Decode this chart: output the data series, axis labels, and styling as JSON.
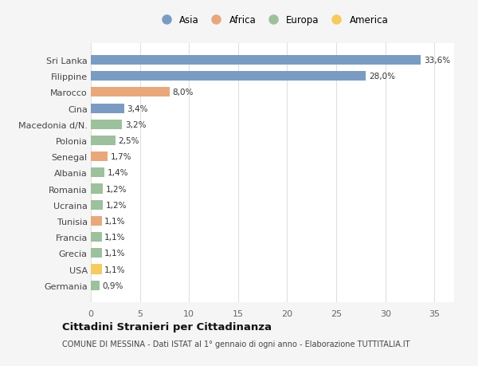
{
  "categories": [
    "Germania",
    "USA",
    "Grecia",
    "Francia",
    "Tunisia",
    "Ucraina",
    "Romania",
    "Albania",
    "Senegal",
    "Polonia",
    "Macedonia d/N.",
    "Cina",
    "Marocco",
    "Filippine",
    "Sri Lanka"
  ],
  "values": [
    0.9,
    1.1,
    1.1,
    1.1,
    1.1,
    1.2,
    1.2,
    1.4,
    1.7,
    2.5,
    3.2,
    3.4,
    8.0,
    28.0,
    33.6
  ],
  "labels": [
    "0,9%",
    "1,1%",
    "1,1%",
    "1,1%",
    "1,1%",
    "1,2%",
    "1,2%",
    "1,4%",
    "1,7%",
    "2,5%",
    "3,2%",
    "3,4%",
    "8,0%",
    "28,0%",
    "33,6%"
  ],
  "colors": [
    "#9dc09d",
    "#f5ca5e",
    "#9dc09d",
    "#9dc09d",
    "#e8a87c",
    "#9dc09d",
    "#9dc09d",
    "#9dc09d",
    "#e8a87c",
    "#9dc09d",
    "#9dc09d",
    "#7b9cc2",
    "#e8a87c",
    "#7b9cc2",
    "#7b9cc2"
  ],
  "legend_labels": [
    "Asia",
    "Africa",
    "Europa",
    "America"
  ],
  "legend_colors": [
    "#7b9cc2",
    "#e8a87c",
    "#9dc09d",
    "#f5ca5e"
  ],
  "title": "Cittadini Stranieri per Cittadinanza",
  "subtitle": "COMUNE DI MESSINA - Dati ISTAT al 1° gennaio di ogni anno - Elaborazione TUTTITALIA.IT",
  "xlim": [
    0,
    37
  ],
  "xticks": [
    0,
    5,
    10,
    15,
    20,
    25,
    30,
    35
  ],
  "background_color": "#f5f5f5",
  "plot_background": "#ffffff",
  "grid_color": "#e0e0e0",
  "bar_height": 0.6
}
